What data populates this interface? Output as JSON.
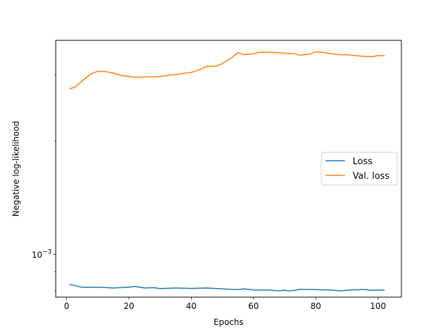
{
  "chart_data": {
    "type": "line",
    "xlabel": "Epochs",
    "ylabel": "Negative log-likelihood",
    "xlim": [
      -3.5,
      107.5
    ],
    "ylim": [
      0.00077,
      0.0037
    ],
    "yscale": "log",
    "grid": false,
    "legend_position": "center-right",
    "x_ticks": [
      {
        "value": 0,
        "label": "0"
      },
      {
        "value": 20,
        "label": "20"
      },
      {
        "value": 40,
        "label": "40"
      },
      {
        "value": 60,
        "label": "60"
      },
      {
        "value": 80,
        "label": "80"
      },
      {
        "value": 100,
        "label": "100"
      }
    ],
    "y_ticks": [
      {
        "value": 0.001,
        "base": "10",
        "exponent": "−3"
      }
    ],
    "series": [
      {
        "name": "Loss",
        "color": "#1f77b4",
        "x": [
          1,
          5,
          10,
          15,
          20,
          22,
          25,
          28,
          30,
          35,
          40,
          45,
          50,
          55,
          57,
          60,
          65,
          68,
          70,
          72,
          75,
          80,
          85,
          88,
          90,
          95,
          98,
          100,
          102
        ],
        "y": [
          0.000832,
          0.000818,
          0.000818,
          0.000814,
          0.000818,
          0.000822,
          0.000814,
          0.000816,
          0.000811,
          0.000814,
          0.000812,
          0.000814,
          0.00081,
          0.000806,
          0.00081,
          0.000804,
          0.000804,
          0.0008,
          0.000803,
          0.0008,
          0.000808,
          0.000806,
          0.000804,
          0.0008,
          0.000803,
          0.000807,
          0.000803,
          0.000805,
          0.000803
        ]
      },
      {
        "name": "Val. loss",
        "color": "#ff7f0e",
        "x": [
          1,
          3,
          5,
          8,
          10,
          12,
          15,
          18,
          20,
          22,
          25,
          28,
          30,
          33,
          35,
          38,
          40,
          43,
          45,
          48,
          50,
          53,
          55,
          57,
          60,
          62,
          65,
          68,
          70,
          73,
          75,
          78,
          80,
          82,
          85,
          88,
          90,
          93,
          95,
          98,
          100,
          102
        ],
        "y": [
          0.00275,
          0.00279,
          0.00289,
          0.00302,
          0.00306,
          0.00306,
          0.00303,
          0.00298,
          0.00297,
          0.00295,
          0.00296,
          0.00296,
          0.00297,
          0.00299,
          0.003,
          0.00303,
          0.00304,
          0.0031,
          0.00316,
          0.00316,
          0.00321,
          0.00333,
          0.00343,
          0.00339,
          0.00341,
          0.00344,
          0.00344,
          0.00343,
          0.00342,
          0.00341,
          0.00338,
          0.0034,
          0.00345,
          0.00344,
          0.00341,
          0.00339,
          0.00339,
          0.00337,
          0.00336,
          0.00335,
          0.00337,
          0.00337
        ]
      }
    ]
  }
}
